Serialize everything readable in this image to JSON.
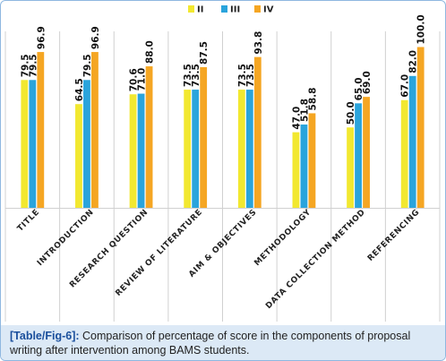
{
  "caption": {
    "tag": "[Table/Fig-6]:",
    "text": "Comparison of percentage of score in the components of proposal writing after intervention among BAMS students."
  },
  "chart_data": {
    "type": "bar",
    "categories": [
      "TITLE",
      "INTRODUCTION",
      "RESEARCH QUESTION",
      "REVIEW OF LITERATURE",
      "AIM & OBJECTIVES",
      "METHODOLOGY",
      "DATA COLLECTION METHOD",
      "REFERENCING"
    ],
    "series": [
      {
        "name": "II",
        "color": "#f2e830",
        "values": [
          79.5,
          64.5,
          70.6,
          73.5,
          73.5,
          47.0,
          50.0,
          67.0
        ],
        "labels": [
          "79.5",
          "64.5",
          "70.6",
          "73.5",
          "73.5",
          "47.0",
          "50.0",
          "67.0"
        ]
      },
      {
        "name": "III",
        "color": "#2aa4dc",
        "values": [
          79.5,
          79.5,
          71.0,
          73.5,
          73.5,
          51.8,
          65.0,
          82.0
        ],
        "labels": [
          "79.5",
          "79.5",
          "71.0",
          "73.5",
          "73.5",
          "51.8",
          "65.0",
          "82.0"
        ]
      },
      {
        "name": "IV",
        "color": "#f5a623",
        "values": [
          96.9,
          96.9,
          88.0,
          87.5,
          93.8,
          58.8,
          69.0,
          100.0
        ],
        "labels": [
          "96.9",
          "96.9",
          "88.0",
          "87.5",
          "93.8",
          "58.8",
          "69.0",
          "100.0"
        ]
      }
    ],
    "ylim": [
      0,
      100
    ],
    "legend": "top-center",
    "grid": false
  }
}
